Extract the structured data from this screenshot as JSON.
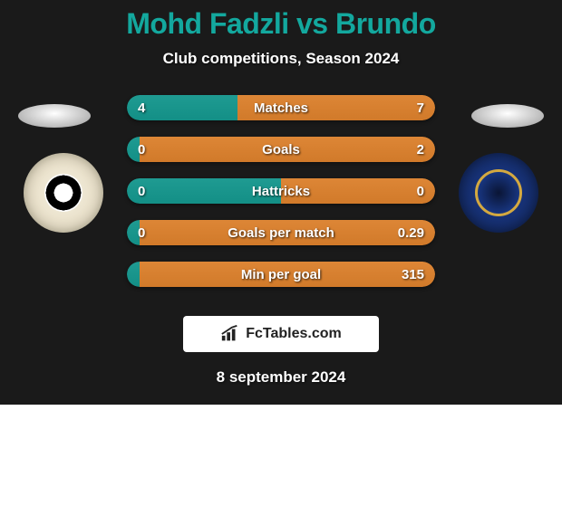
{
  "title": "Mohd Fadzli vs Brundo",
  "title_color": "#13a89e",
  "subtitle": "Club competitions, Season 2024",
  "background_color": "#1a1a1a",
  "text_color": "#ffffff",
  "date_text": "8 september 2024",
  "footer_brand": "FcTables.com",
  "left_player": {
    "avatar_ellipse_color": "#b9b9b9",
    "badge_main_color": "#e8dfc8"
  },
  "right_player": {
    "avatar_ellipse_color": "#b9b9b9",
    "badge_main_color": "#1a3a8a"
  },
  "bar_colors": {
    "left": "#138f86",
    "right": "#d17a2a"
  },
  "stats": [
    {
      "label": "Matches",
      "left_val": "4",
      "right_val": "7",
      "left_pct": 36,
      "right_pct": 64
    },
    {
      "label": "Goals",
      "left_val": "0",
      "right_val": "2",
      "left_pct": 4,
      "right_pct": 96
    },
    {
      "label": "Hattricks",
      "left_val": "0",
      "right_val": "0",
      "left_pct": 50,
      "right_pct": 50
    },
    {
      "label": "Goals per match",
      "left_val": "0",
      "right_val": "0.29",
      "left_pct": 4,
      "right_pct": 96
    },
    {
      "label": "Min per goal",
      "left_val": "",
      "right_val": "315",
      "left_pct": 4,
      "right_pct": 96
    }
  ]
}
